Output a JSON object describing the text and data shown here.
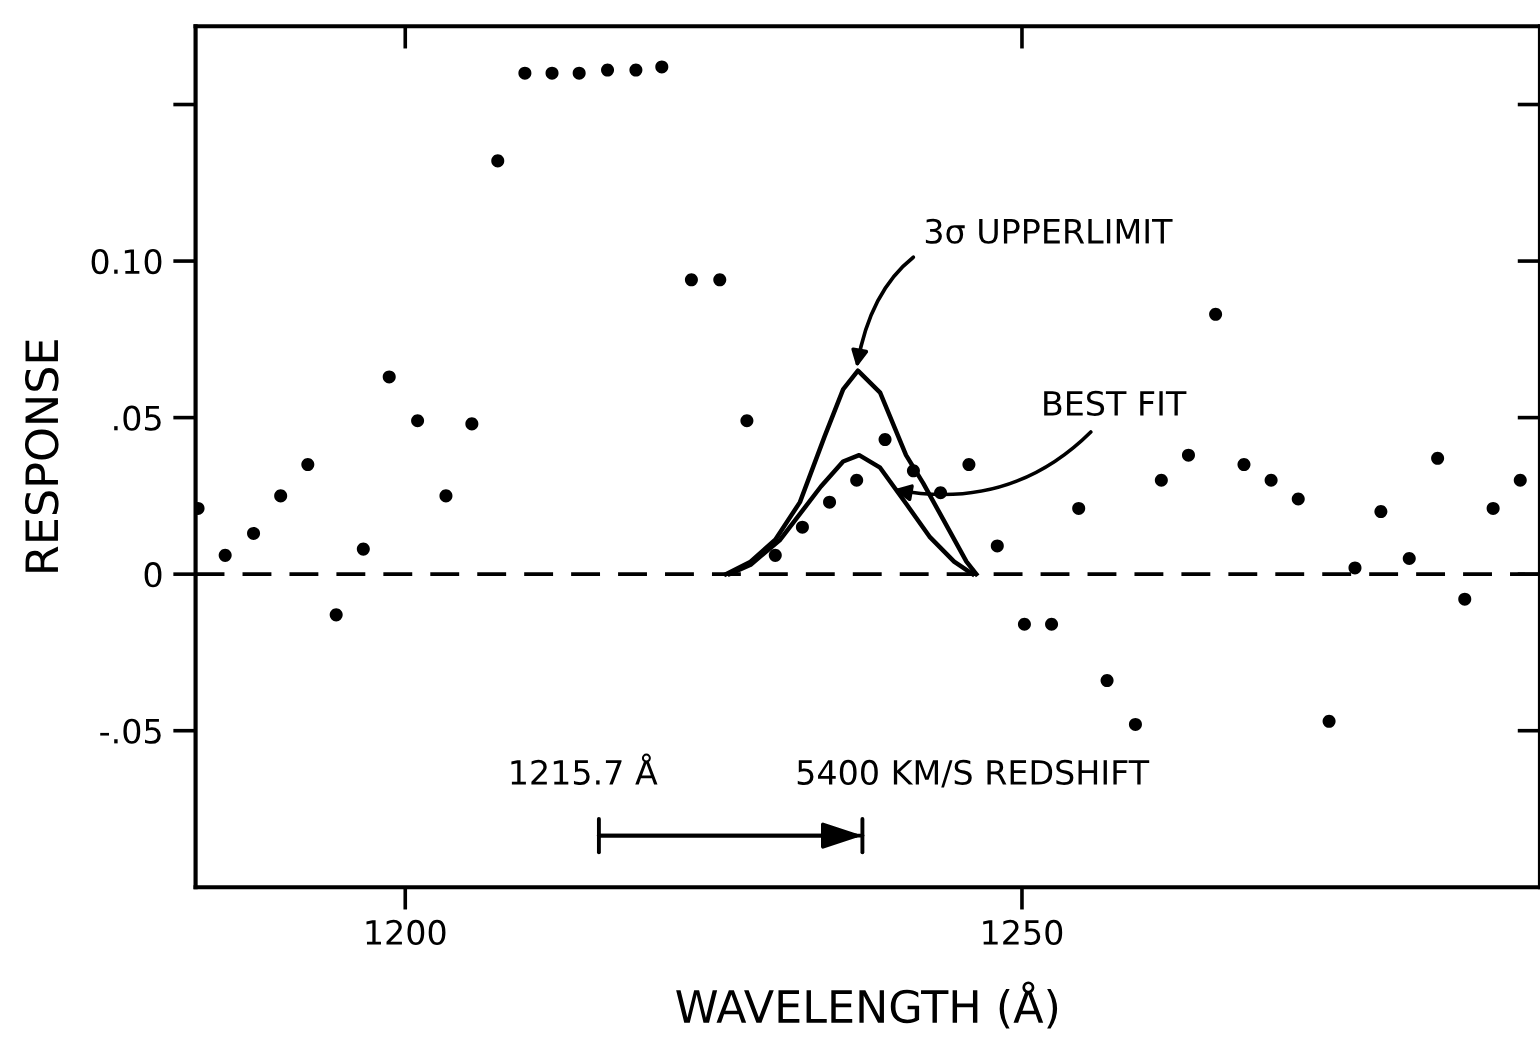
{
  "chart_data": {
    "type": "scatter",
    "xlabel": "WAVELENGTH (Å)",
    "ylabel": "RESPONSE",
    "xlim": [
      1183.0,
      1292
    ],
    "ylim": [
      -0.1,
      0.175
    ],
    "xticks": [
      1200,
      1250
    ],
    "yticks": [
      {
        "value": -0.05,
        "label": "-.05"
      },
      0,
      {
        "value": 0.05,
        "label": ".05"
      },
      {
        "value": 0.1,
        "label": "0.10"
      },
      {
        "value": 0.15,
        "label": null
      }
    ],
    "grid": false,
    "legend": false,
    "marker": "circle",
    "series": [
      {
        "color": "#000000",
        "x": [
          1183.2,
          1185.4,
          1187.7,
          1189.9,
          1192.1,
          1194.4,
          1196.6,
          1198.7,
          1201.0,
          1203.3,
          1205.4,
          1207.5,
          1209.7,
          1211.9,
          1214.1,
          1216.4,
          1218.7,
          1220.8,
          1223.2,
          1225.5,
          1227.7,
          1230.0,
          1232.2,
          1234.4,
          1236.6,
          1238.9,
          1241.2,
          1243.4,
          1245.7,
          1248.0,
          1250.2,
          1252.4,
          1254.6,
          1256.9,
          1259.2,
          1261.3,
          1263.5,
          1265.7,
          1268.0,
          1270.2,
          1272.4,
          1274.9,
          1277.0,
          1279.1,
          1281.4,
          1283.7,
          1285.9,
          1288.2,
          1290.4
        ],
        "values": [
          0.021,
          0.006,
          0.013,
          0.025,
          0.035,
          -0.013,
          0.008,
          0.063,
          0.049,
          0.025,
          0.048,
          0.132,
          0.16,
          0.16,
          0.16,
          0.161,
          0.161,
          0.162,
          0.094,
          0.094,
          0.049,
          0.006,
          0.015,
          0.023,
          0.03,
          0.043,
          0.033,
          0.026,
          0.035,
          0.009,
          -0.016,
          -0.016,
          0.021,
          -0.034,
          -0.048,
          0.03,
          0.038,
          0.083,
          0.035,
          0.03,
          0.024,
          -0.047,
          0.002,
          0.02,
          0.005,
          0.037,
          -0.008,
          0.021,
          0.03
        ]
      },
      {
        "type": "line",
        "marker": "none",
        "color": "#000000",
        "line_style": "solid",
        "x": [
          1226.0,
          1228.0,
          1230.0,
          1232.0,
          1234.0,
          1235.5,
          1236.7,
          1238.5,
          1240.6,
          1242.0,
          1243.4,
          1245.5,
          1246.3
        ],
        "values": [
          0,
          0.004,
          0.011,
          0.023,
          0.044,
          0.059,
          0.065,
          0.058,
          0.038,
          0.029,
          0.019,
          0.004,
          0
        ]
      },
      {
        "type": "line",
        "marker": "none",
        "color": "#000000",
        "line_style": "solid",
        "x": [
          1226.3,
          1228.0,
          1230.4,
          1233.7,
          1235.5,
          1236.8,
          1238.5,
          1240.7,
          1242.5,
          1244.5,
          1246.0
        ],
        "values": [
          0,
          0.003,
          0.011,
          0.028,
          0.036,
          0.038,
          0.034,
          0.022,
          0.012,
          0.004,
          0
        ]
      }
    ],
    "ref_lines": [
      {
        "axis": "y",
        "value": 0,
        "line_style": "dashed",
        "color": "#000000"
      }
    ],
    "annotations": [
      {
        "text": "3σ UPPERLIMIT",
        "x": 1236.6,
        "y": 0.066
      },
      {
        "text": "BEST FIT",
        "x": 1239.6,
        "y": 0.027
      },
      "1215.7 Å",
      "5400 KM/S REDSHIFT"
    ]
  }
}
